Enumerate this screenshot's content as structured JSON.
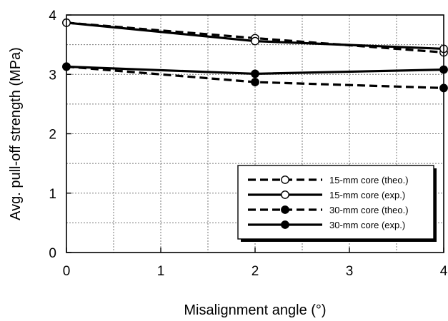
{
  "chart_data": {
    "type": "line",
    "xlabel": "Misalignment angle (°)",
    "ylabel": "Avg. pull-off strength (MPa)",
    "xlim": [
      0,
      4
    ],
    "ylim": [
      0,
      4
    ],
    "xticks": [
      "0",
      "1",
      "2",
      "3",
      "4"
    ],
    "yticks": [
      "0",
      "1",
      "2",
      "3",
      "4"
    ],
    "grid": true,
    "legend_position": "bottom-right",
    "series": [
      {
        "name": "15-mm core (theo.)",
        "line": "dashed",
        "marker": "open-circle",
        "x": [
          0,
          2,
          4
        ],
        "y": [
          3.87,
          3.61,
          3.37
        ]
      },
      {
        "name": "15-mm core (exp.)",
        "line": "solid",
        "marker": "open-circle",
        "x": [
          0,
          2,
          4
        ],
        "y": [
          3.87,
          3.56,
          3.43
        ]
      },
      {
        "name": "30-mm core (theo.)",
        "line": "dashed",
        "marker": "filled-circle",
        "x": [
          0,
          2,
          4
        ],
        "y": [
          3.13,
          2.87,
          2.77
        ]
      },
      {
        "name": "30-mm core (exp.)",
        "line": "solid",
        "marker": "filled-circle",
        "x": [
          0,
          2,
          4
        ],
        "y": [
          3.13,
          3.01,
          3.08
        ]
      }
    ]
  }
}
